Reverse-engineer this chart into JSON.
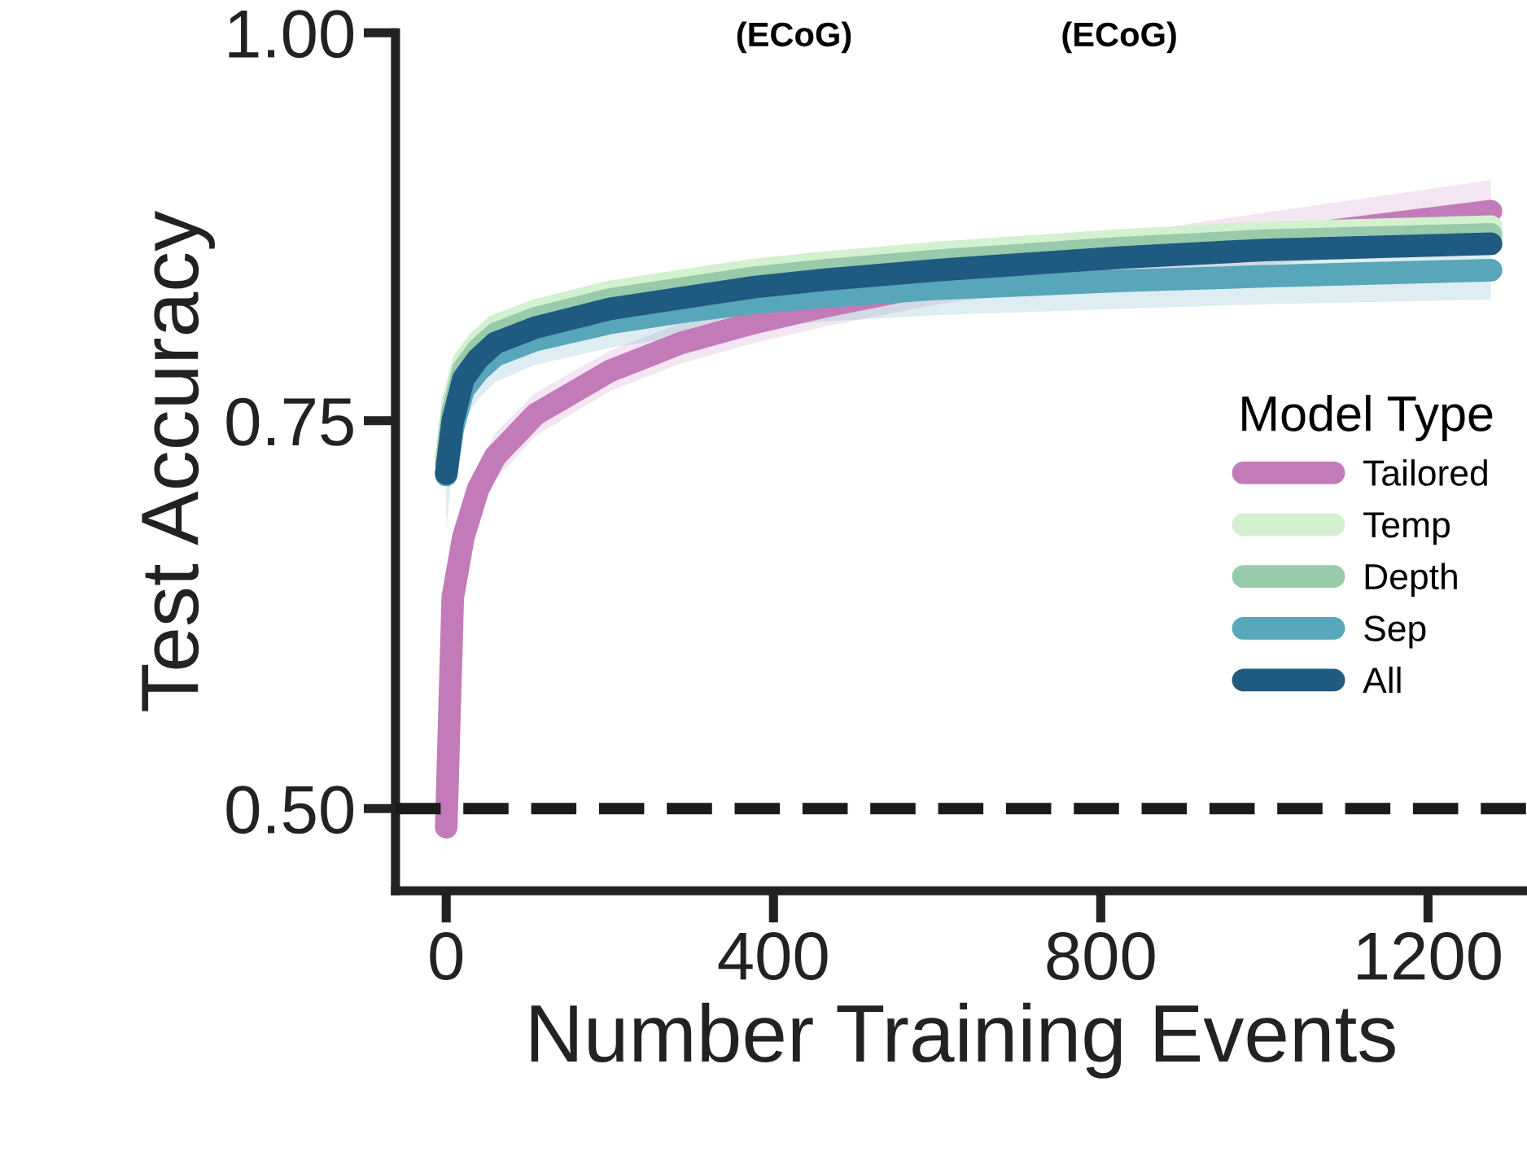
{
  "chart_data": {
    "type": "line",
    "xlabel": "Number Training Events",
    "ylabel": "Test Accuracy",
    "legend_title": "Model Type",
    "annotations": [
      "(ECoG)",
      "(ECoG)"
    ],
    "x": [
      0,
      8,
      21,
      39,
      60,
      109,
      200,
      287,
      376,
      466,
      600,
      820,
      1000,
      1277
    ],
    "series": [
      {
        "name": "Tailored",
        "color": "#c27bb8",
        "values": [
          0.488,
          0.636,
          0.675,
          0.706,
          0.727,
          0.754,
          0.782,
          0.8,
          0.813,
          0.824,
          0.838,
          0.855,
          0.867,
          0.885
        ],
        "lower": [
          0.47,
          0.61,
          0.655,
          0.69,
          0.712,
          0.74,
          0.769,
          0.787,
          0.8,
          0.811,
          0.825,
          0.84,
          0.85,
          0.865
        ],
        "upper": [
          0.5,
          0.66,
          0.695,
          0.722,
          0.742,
          0.768,
          0.795,
          0.813,
          0.826,
          0.837,
          0.851,
          0.87,
          0.884,
          0.905
        ]
      },
      {
        "name": "Temp",
        "color": "#d3f0cf",
        "values": [
          0.726,
          0.762,
          0.788,
          0.801,
          0.811,
          0.821,
          0.833,
          0.84,
          0.847,
          0.852,
          0.858,
          0.866,
          0.871,
          0.875
        ]
      },
      {
        "name": "Depth",
        "color": "#97cbaa",
        "values": [
          0.722,
          0.756,
          0.783,
          0.796,
          0.806,
          0.816,
          0.828,
          0.835,
          0.842,
          0.847,
          0.853,
          0.861,
          0.866,
          0.87
        ]
      },
      {
        "name": "Sep",
        "color": "#57a6ba",
        "values": [
          0.715,
          0.745,
          0.77,
          0.782,
          0.792,
          0.802,
          0.813,
          0.82,
          0.826,
          0.83,
          0.835,
          0.84,
          0.843,
          0.847
        ],
        "lower": [
          0.68,
          0.72,
          0.75,
          0.764,
          0.775,
          0.786,
          0.797,
          0.804,
          0.81,
          0.814,
          0.818,
          0.822,
          0.825,
          0.828
        ],
        "upper": [
          0.745,
          0.768,
          0.79,
          0.8,
          0.809,
          0.818,
          0.829,
          0.836,
          0.842,
          0.846,
          0.852,
          0.858,
          0.861,
          0.866
        ]
      },
      {
        "name": "All",
        "color": "#1f5a80",
        "values": [
          0.716,
          0.75,
          0.777,
          0.79,
          0.8,
          0.81,
          0.822,
          0.829,
          0.836,
          0.841,
          0.847,
          0.855,
          0.86,
          0.864
        ]
      }
    ],
    "xlim": [
      -62,
      1321
    ],
    "ylim": [
      0.447,
      1.0
    ],
    "xticks": [
      0,
      400,
      800,
      1200
    ],
    "yticks": [
      {
        "value": 0.5,
        "label": "0.50"
      },
      {
        "value": 0.75,
        "label": "0.75"
      },
      {
        "value": 1.0,
        "label": "1.00"
      }
    ],
    "ref_lines": [
      {
        "axis": "y",
        "value": 0.5,
        "color": "#1a1a1a",
        "line_style": "dashed"
      }
    ],
    "legend": "right",
    "grid": false,
    "line_style": "solid"
  }
}
